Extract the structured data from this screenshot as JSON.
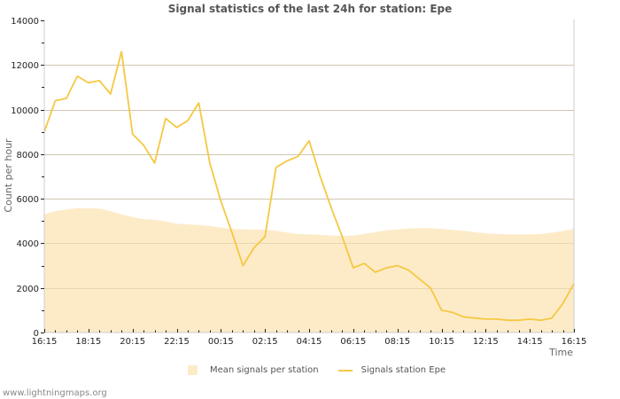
{
  "header": {
    "title": "Signal statistics of the last 24h for station: Epe"
  },
  "legend": {
    "items": [
      {
        "label": "Mean signals per station",
        "type": "area",
        "color": "#fdebc8"
      },
      {
        "label": "Signals station Epe",
        "type": "line",
        "color": "#f5c842"
      }
    ]
  },
  "footer": {
    "text": "www.lightningmaps.org"
  },
  "axes": {
    "ylabel": "Count per hour",
    "xlabel": "Time"
  },
  "colors": {
    "mean_area": "#fdebc8",
    "station_line": "#f5c842",
    "grid": "#c8c8c8",
    "grid_over_area": "#d6c49a",
    "axis": "#cccccc"
  },
  "chart_data": {
    "type": "line",
    "title": "Signal statistics of the last 24h for station: Epe",
    "xlabel": "Time",
    "ylabel": "Count per hour",
    "ylim": [
      0,
      14000
    ],
    "yticks": [
      0,
      2000,
      4000,
      6000,
      8000,
      10000,
      12000,
      14000
    ],
    "xtick_labels": [
      "16:15",
      "18:15",
      "20:15",
      "22:15",
      "00:15",
      "02:15",
      "04:15",
      "06:15",
      "08:15",
      "10:15",
      "12:15",
      "14:15",
      "16:15"
    ],
    "grid": true,
    "legend_position": "bottom",
    "x": [
      "16:15",
      "16:45",
      "17:15",
      "17:45",
      "18:15",
      "18:45",
      "19:15",
      "19:45",
      "20:15",
      "20:45",
      "21:15",
      "21:45",
      "22:15",
      "22:45",
      "23:15",
      "23:45",
      "00:15",
      "00:45",
      "01:15",
      "01:45",
      "02:15",
      "02:45",
      "03:15",
      "03:45",
      "04:15",
      "04:45",
      "05:15",
      "05:45",
      "06:15",
      "06:45",
      "07:15",
      "07:45",
      "08:15",
      "08:45",
      "09:15",
      "09:45",
      "10:15",
      "10:45",
      "11:15",
      "11:45",
      "12:15",
      "12:45",
      "13:15",
      "13:45",
      "14:15",
      "14:45",
      "15:15",
      "15:45",
      "16:15"
    ],
    "series": [
      {
        "name": "Mean signals per station",
        "type": "area",
        "values": [
          5300,
          5450,
          5520,
          5580,
          5580,
          5560,
          5450,
          5300,
          5180,
          5080,
          5050,
          4980,
          4880,
          4850,
          4820,
          4780,
          4700,
          4650,
          4620,
          4620,
          4600,
          4560,
          4480,
          4420,
          4400,
          4380,
          4350,
          4330,
          4350,
          4420,
          4500,
          4580,
          4620,
          4660,
          4680,
          4680,
          4650,
          4600,
          4560,
          4500,
          4450,
          4420,
          4400,
          4400,
          4400,
          4420,
          4480,
          4550,
          4650
        ]
      },
      {
        "name": "Signals station Epe",
        "type": "line",
        "values": [
          9000,
          10400,
          10500,
          11500,
          11200,
          11300,
          10700,
          12600,
          8900,
          8400,
          7600,
          9600,
          9200,
          9500,
          10300,
          7600,
          5900,
          4500,
          3000,
          3800,
          4300,
          7400,
          7700,
          7900,
          8600,
          7000,
          5600,
          4300,
          2900,
          3100,
          2700,
          2900,
          3000,
          2800,
          2400,
          2000,
          1000,
          900,
          700,
          650,
          600,
          600,
          550,
          550,
          600,
          550,
          650,
          1300,
          2200
        ]
      }
    ]
  }
}
